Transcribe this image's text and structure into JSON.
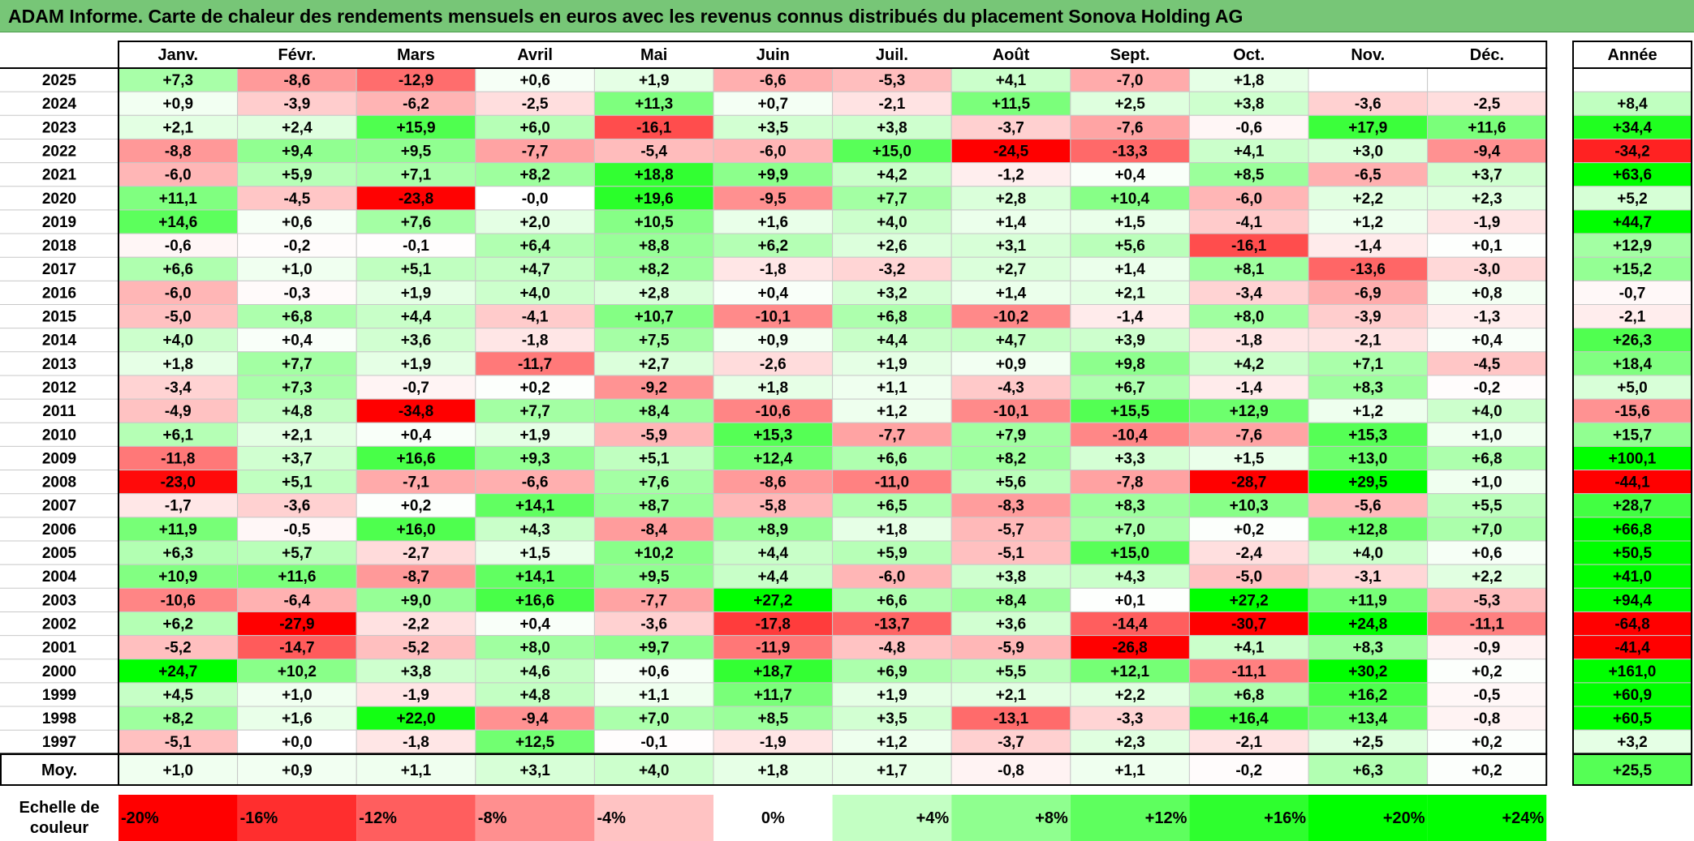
{
  "title": "ADAM Informe. Carte de chaleur des rendements mensuels en euros avec les revenus connus distribués du placement Sonova Holding AG",
  "chart_data": {
    "type": "heatmap",
    "title": "ADAM Informe. Carte de chaleur des rendements mensuels en euros avec les revenus connus distribués du placement Sonova Holding AG",
    "months": [
      "Janv.",
      "Févr.",
      "Mars",
      "Avril",
      "Mai",
      "Juin",
      "Juil.",
      "Août",
      "Sept.",
      "Oct.",
      "Nov.",
      "Déc."
    ],
    "year_header": "Année",
    "rows": [
      {
        "year": "2025",
        "values": [
          7.3,
          -8.6,
          -12.9,
          0.6,
          1.9,
          -6.6,
          -5.3,
          4.1,
          -7.0,
          1.8,
          null,
          null
        ],
        "annual": null
      },
      {
        "year": "2024",
        "values": [
          0.9,
          -3.9,
          -6.2,
          -2.5,
          11.3,
          0.7,
          -2.1,
          11.5,
          2.5,
          3.8,
          -3.6,
          -2.5
        ],
        "annual": 8.4
      },
      {
        "year": "2023",
        "values": [
          2.1,
          2.4,
          15.9,
          6.0,
          -16.1,
          3.5,
          3.8,
          -3.7,
          -7.6,
          -0.6,
          17.9,
          11.6
        ],
        "annual": 34.4
      },
      {
        "year": "2022",
        "values": [
          -8.8,
          9.4,
          9.5,
          -7.7,
          -5.4,
          -6.0,
          15.0,
          -24.5,
          -13.3,
          4.1,
          3.0,
          -9.4
        ],
        "annual": -34.2
      },
      {
        "year": "2021",
        "values": [
          -6.0,
          5.9,
          7.1,
          8.2,
          18.8,
          9.9,
          4.2,
          -1.2,
          0.4,
          8.5,
          -6.5,
          3.7
        ],
        "annual": 63.6
      },
      {
        "year": "2020",
        "values": [
          11.1,
          -4.5,
          -23.8,
          "-0,0",
          19.6,
          -9.5,
          7.7,
          2.8,
          10.4,
          -6.0,
          2.2,
          2.3
        ],
        "annual": 5.2
      },
      {
        "year": "2019",
        "values": [
          14.6,
          0.6,
          7.6,
          2.0,
          10.5,
          1.6,
          4.0,
          1.4,
          1.5,
          -4.1,
          1.2,
          -1.9
        ],
        "annual": 44.7
      },
      {
        "year": "2018",
        "values": [
          -0.6,
          -0.2,
          -0.1,
          6.4,
          8.8,
          6.2,
          2.6,
          3.1,
          5.6,
          -16.1,
          -1.4,
          0.1
        ],
        "annual": 12.9
      },
      {
        "year": "2017",
        "values": [
          6.6,
          1.0,
          5.1,
          4.7,
          8.2,
          -1.8,
          -3.2,
          2.7,
          1.4,
          8.1,
          -13.6,
          -3.0
        ],
        "annual": 15.2
      },
      {
        "year": "2016",
        "values": [
          -6.0,
          -0.3,
          1.9,
          4.0,
          2.8,
          0.4,
          3.2,
          1.4,
          2.1,
          -3.4,
          -6.9,
          0.8
        ],
        "annual": -0.7
      },
      {
        "year": "2015",
        "values": [
          -5.0,
          6.8,
          4.4,
          -4.1,
          10.7,
          -10.1,
          6.8,
          -10.2,
          -1.4,
          8.0,
          -3.9,
          -1.3
        ],
        "annual": -2.1
      },
      {
        "year": "2014",
        "values": [
          4.0,
          0.4,
          3.6,
          -1.8,
          7.5,
          0.9,
          4.4,
          4.7,
          3.9,
          -1.8,
          -2.1,
          0.4
        ],
        "annual": 26.3
      },
      {
        "year": "2013",
        "values": [
          1.8,
          7.7,
          1.9,
          -11.7,
          2.7,
          -2.6,
          1.9,
          0.9,
          9.8,
          4.2,
          7.1,
          -4.5
        ],
        "annual": 18.4
      },
      {
        "year": "2012",
        "values": [
          -3.4,
          7.3,
          -0.7,
          0.2,
          -9.2,
          1.8,
          1.1,
          -4.3,
          6.7,
          -1.4,
          8.3,
          -0.2
        ],
        "annual": 5.0
      },
      {
        "year": "2011",
        "values": [
          -4.9,
          4.8,
          -34.8,
          7.7,
          8.4,
          -10.6,
          1.2,
          -10.1,
          15.5,
          12.9,
          1.2,
          4.0
        ],
        "annual": -15.6
      },
      {
        "year": "2010",
        "values": [
          6.1,
          2.1,
          0.4,
          1.9,
          -5.9,
          15.3,
          -7.7,
          7.9,
          -10.4,
          -7.6,
          15.3,
          1.0
        ],
        "annual": 15.7
      },
      {
        "year": "2009",
        "values": [
          -11.8,
          3.7,
          16.6,
          9.3,
          5.1,
          12.4,
          6.6,
          8.2,
          3.3,
          1.5,
          13.0,
          6.8
        ],
        "annual": 100.1
      },
      {
        "year": "2008",
        "values": [
          -23.0,
          5.1,
          -7.1,
          -6.6,
          7.6,
          -8.6,
          -11.0,
          5.6,
          -7.8,
          -28.7,
          29.5,
          1.0
        ],
        "annual": -44.1
      },
      {
        "year": "2007",
        "values": [
          -1.7,
          -3.6,
          0.2,
          14.1,
          8.7,
          -5.8,
          6.5,
          -8.3,
          8.3,
          10.3,
          -5.6,
          5.5
        ],
        "annual": 28.7
      },
      {
        "year": "2006",
        "values": [
          11.9,
          -0.5,
          16.0,
          4.3,
          -8.4,
          8.9,
          1.8,
          -5.7,
          7.0,
          0.2,
          12.8,
          7.0
        ],
        "annual": 66.8
      },
      {
        "year": "2005",
        "values": [
          6.3,
          5.7,
          -2.7,
          1.5,
          10.2,
          4.4,
          5.9,
          -5.1,
          15.0,
          -2.4,
          4.0,
          0.6
        ],
        "annual": 50.5
      },
      {
        "year": "2004",
        "values": [
          10.9,
          11.6,
          -8.7,
          14.1,
          9.5,
          4.4,
          -6.0,
          3.8,
          4.3,
          -5.0,
          -3.1,
          2.2
        ],
        "annual": 41.0
      },
      {
        "year": "2003",
        "values": [
          -10.6,
          -6.4,
          9.0,
          16.6,
          -7.7,
          27.2,
          6.6,
          8.4,
          0.1,
          27.2,
          11.9,
          -5.3
        ],
        "annual": 94.4
      },
      {
        "year": "2002",
        "values": [
          6.2,
          -27.9,
          -2.2,
          0.4,
          -3.6,
          -17.8,
          -13.7,
          3.6,
          -14.4,
          -30.7,
          24.8,
          -11.1
        ],
        "annual": -64.8
      },
      {
        "year": "2001",
        "values": [
          -5.2,
          -14.7,
          -5.2,
          8.0,
          9.7,
          -11.9,
          -4.8,
          -5.9,
          -26.8,
          4.1,
          8.3,
          -0.9
        ],
        "annual": -41.4
      },
      {
        "year": "2000",
        "values": [
          24.7,
          10.2,
          3.8,
          4.6,
          0.6,
          18.7,
          6.9,
          5.5,
          12.1,
          -11.1,
          30.2,
          0.2
        ],
        "annual": 161.0
      },
      {
        "year": "1999",
        "values": [
          4.5,
          1.0,
          -1.9,
          4.8,
          1.1,
          11.7,
          1.9,
          2.1,
          2.2,
          6.8,
          16.2,
          -0.5
        ],
        "annual": 60.9
      },
      {
        "year": "1998",
        "values": [
          8.2,
          1.6,
          22.0,
          -9.4,
          7.0,
          8.5,
          3.5,
          -13.1,
          -3.3,
          16.4,
          13.4,
          -0.8
        ],
        "annual": 60.5
      },
      {
        "year": "1997",
        "values": [
          -5.1,
          0.0,
          -1.8,
          12.5,
          -0.1,
          -1.9,
          1.2,
          -3.7,
          2.3,
          -2.1,
          2.5,
          0.2
        ],
        "annual": 3.2
      }
    ],
    "average": {
      "label": "Moy.",
      "values": [
        1.0,
        0.9,
        1.1,
        3.1,
        4.0,
        1.8,
        1.7,
        -0.8,
        1.1,
        -0.2,
        6.3,
        0.2
      ],
      "annual": 25.5
    },
    "scale": {
      "label_lines": [
        "Echelle de",
        "couleur"
      ],
      "steps": [
        {
          "label": "-20%",
          "value": -20,
          "align": "left"
        },
        {
          "label": "-16%",
          "value": -16,
          "align": "left"
        },
        {
          "label": "-12%",
          "value": -12,
          "align": "left"
        },
        {
          "label": "-8%",
          "value": -8,
          "align": "left"
        },
        {
          "label": "-4%",
          "value": -4,
          "align": "left"
        },
        {
          "label": "0%",
          "value": 0,
          "align": "center"
        },
        {
          "label": "+4%",
          "value": 4,
          "align": "right"
        },
        {
          "label": "+8%",
          "value": 8,
          "align": "right"
        },
        {
          "label": "+12%",
          "value": 12,
          "align": "right"
        },
        {
          "label": "+16%",
          "value": 16,
          "align": "right"
        },
        {
          "label": "+20%",
          "value": 20,
          "align": "right"
        },
        {
          "label": "+24%",
          "value": 24,
          "align": "right"
        }
      ]
    },
    "colors": {
      "negative_max": "#ff0000",
      "positive_max": "#00ff00",
      "zero": "#ffffff",
      "title_bg": "#77c677"
    }
  }
}
